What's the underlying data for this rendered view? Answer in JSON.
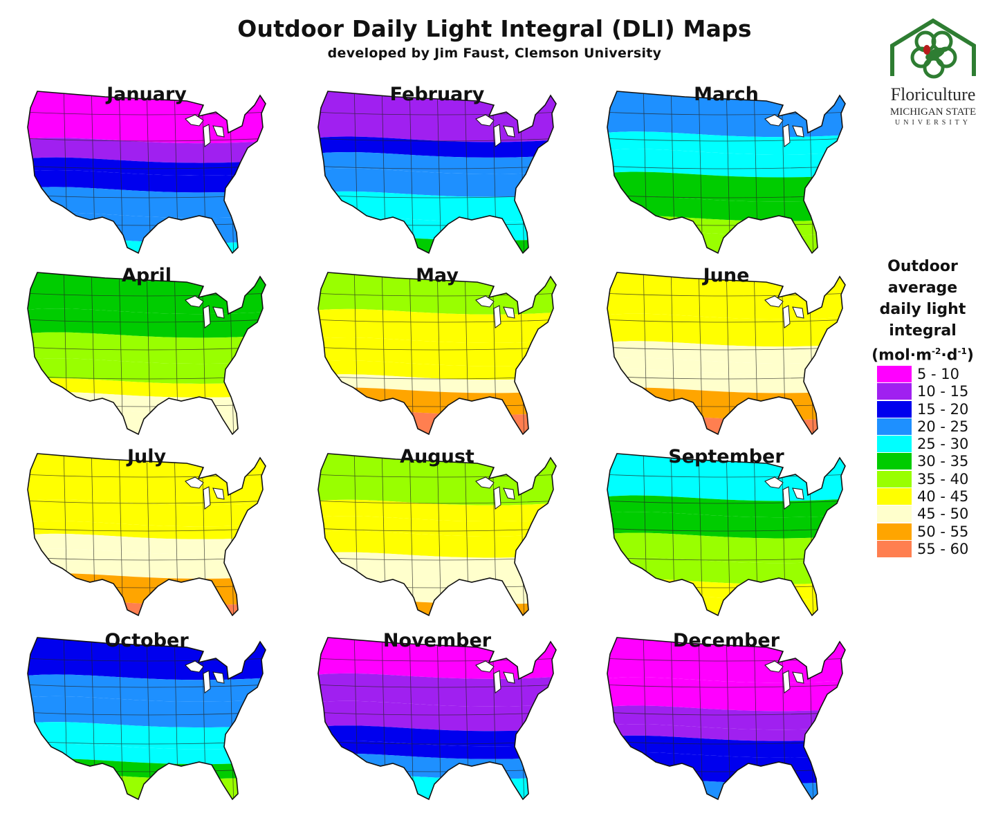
{
  "title": "Outdoor Daily Light Integral (DLI) Maps",
  "subtitle": "developed by Jim Faust, Clemson University",
  "logo": {
    "word": "Floriculture",
    "line2": "MICHIGAN STATE",
    "line3": "UNIVERSITY",
    "icon": "flower-house-logo-icon",
    "green": "#2e7d32",
    "red": "#b71c1c"
  },
  "legend": {
    "title_lines": [
      "Outdoor",
      "average",
      "daily light",
      "integral"
    ],
    "unit_prefix": "(mol·m",
    "unit_sup1": "-2",
    "unit_mid": "·d",
    "unit_sup2": "-1",
    "unit_suffix": ")",
    "classes": [
      {
        "label": "5 - 10",
        "color": "#ff00ff"
      },
      {
        "label": "10 - 15",
        "color": "#a020f0"
      },
      {
        "label": "15 - 20",
        "color": "#0000ee"
      },
      {
        "label": "20 - 25",
        "color": "#1e90ff"
      },
      {
        "label": "25 - 30",
        "color": "#00ffff"
      },
      {
        "label": "30 - 35",
        "color": "#00cc00"
      },
      {
        "label": "35 - 40",
        "color": "#99ff00"
      },
      {
        "label": "40 - 45",
        "color": "#ffff00"
      },
      {
        "label": "45 - 50",
        "color": "#ffffcc"
      },
      {
        "label": "50 - 55",
        "color": "#ffa500"
      },
      {
        "label": "55 - 60",
        "color": "#ff7f50"
      }
    ]
  },
  "maps": [
    {
      "month": "January",
      "bands": [
        0,
        1,
        2,
        2,
        3,
        3,
        4
      ]
    },
    {
      "month": "February",
      "bands": [
        1,
        2,
        3,
        3,
        4,
        4,
        5
      ]
    },
    {
      "month": "March",
      "bands": [
        3,
        4,
        4,
        5,
        5,
        6,
        6
      ]
    },
    {
      "month": "April",
      "bands": [
        5,
        5,
        6,
        6,
        7,
        8,
        8
      ]
    },
    {
      "month": "May",
      "bands": [
        6,
        7,
        7,
        7,
        8,
        9,
        10
      ]
    },
    {
      "month": "June",
      "bands": [
        7,
        7,
        8,
        8,
        8,
        9,
        10
      ]
    },
    {
      "month": "July",
      "bands": [
        7,
        7,
        7,
        8,
        8,
        9,
        10
      ]
    },
    {
      "month": "August",
      "bands": [
        6,
        7,
        7,
        7,
        8,
        8,
        9
      ]
    },
    {
      "month": "September",
      "bands": [
        4,
        5,
        5,
        6,
        6,
        7,
        7
      ]
    },
    {
      "month": "October",
      "bands": [
        2,
        3,
        3,
        4,
        4,
        5,
        6
      ]
    },
    {
      "month": "November",
      "bands": [
        0,
        1,
        1,
        2,
        2,
        3,
        4
      ]
    },
    {
      "month": "December",
      "bands": [
        0,
        0,
        1,
        1,
        2,
        2,
        3
      ]
    }
  ]
}
